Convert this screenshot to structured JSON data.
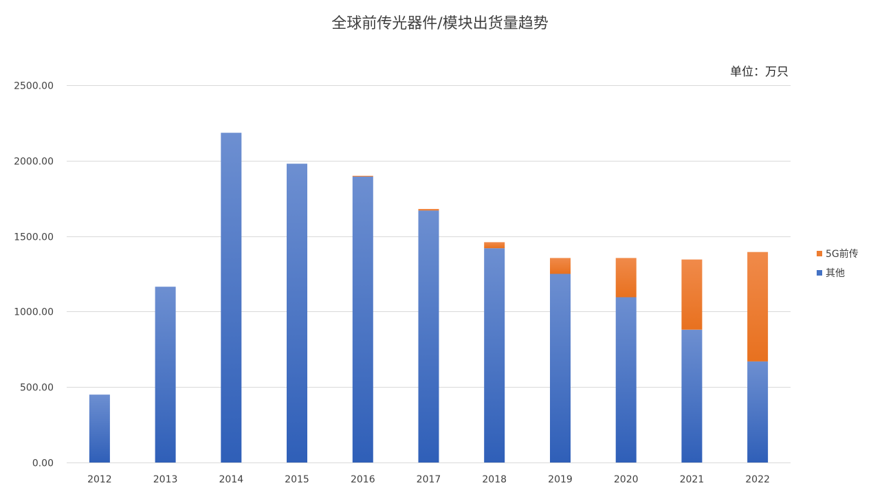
{
  "chart_data": {
    "type": "bar",
    "stacked": true,
    "title": "全球前传光器件/模块出货量趋势",
    "unit_label": "单位：万只",
    "categories": [
      "2012",
      "2013",
      "2014",
      "2015",
      "2016",
      "2017",
      "2018",
      "2019",
      "2020",
      "2021",
      "2022"
    ],
    "series": [
      {
        "name": "其他",
        "color": "#4472c4",
        "values": [
          450,
          1165,
          2185,
          1980,
          1895,
          1670,
          1420,
          1250,
          1095,
          880,
          670
        ]
      },
      {
        "name": "5G前传",
        "color": "#ed7d31",
        "values": [
          0,
          0,
          0,
          0,
          5,
          10,
          40,
          105,
          260,
          465,
          725
        ]
      }
    ],
    "yticks": [
      "0.00",
      "500.00",
      "1000.00",
      "1500.00",
      "2000.00",
      "2500.00"
    ],
    "ylim": [
      0,
      2500
    ],
    "grid": true,
    "legend_position": "right",
    "legend_order": [
      "5G前传",
      "其他"
    ]
  }
}
